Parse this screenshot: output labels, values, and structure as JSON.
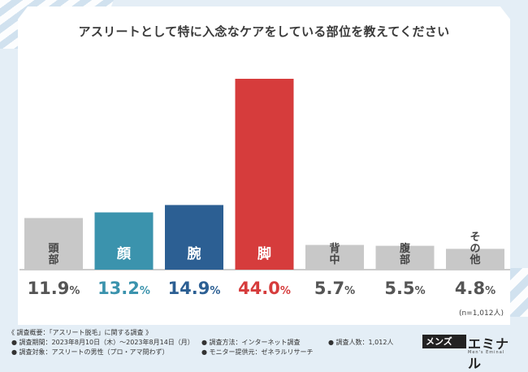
{
  "title": "アスリートとして特に入念なケアをしている部位を教えてください",
  "chart_data": {
    "type": "bar",
    "title": "アスリートとして特に入念なケアをしている部位を教えてください",
    "categories": [
      "頭部",
      "顔",
      "腕",
      "脚",
      "背中",
      "腹部",
      "その他"
    ],
    "values": [
      11.9,
      13.2,
      14.9,
      44.0,
      5.7,
      5.5,
      4.8
    ],
    "value_labels": [
      "11.9%",
      "13.2%",
      "14.9%",
      "44.0%",
      "5.7%",
      "5.5%",
      "4.8%"
    ],
    "colors": [
      "#c8c8c8",
      "#3b93ad",
      "#2c5f93",
      "#d63c3c",
      "#c8c8c8",
      "#c8c8c8",
      "#c8c8c8"
    ],
    "label_colors": [
      "#555555",
      "#3b93ad",
      "#2c5f93",
      "#d63c3c",
      "#555555",
      "#555555",
      "#555555"
    ],
    "unit": "%",
    "ylim": [
      0,
      44.0
    ],
    "grid": false
  },
  "n_note": "(n=1,012人)",
  "footer": {
    "overview": "《 調査概要：「アスリート脱毛」に関する調査 》",
    "period": "● 調査期間：2023年8月10日（木）～2023年8月14日（月）",
    "target": "● 調査対象：アスリートの男性（プロ・アマ問わず）",
    "method": "● 調査方法：インターネット調査",
    "monitor": "● モニター提供元：ゼネラルリサーチ",
    "count": "● 調査人数：1,012人"
  },
  "logo": {
    "box_text": "メンズ",
    "word": "エミナル",
    "sub": "Men's Eminal"
  },
  "colors": {
    "background": "#e4eef6",
    "card": "#ffffff",
    "baseline": "#999999"
  }
}
